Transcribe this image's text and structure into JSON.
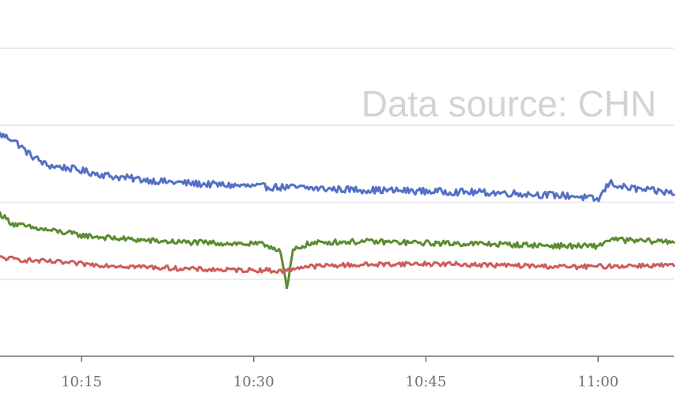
{
  "watermark": "Data source: CHN",
  "chart_data": {
    "type": "line",
    "x_tick_labels": [
      "10:15",
      "10:30",
      "10:45",
      "11:00"
    ],
    "x_tick_minutes": [
      15,
      30,
      45,
      60
    ],
    "x_range_minutes": [
      7.9,
      66.6
    ],
    "y_range": [
      0,
      4
    ],
    "y_gridlines": [
      1,
      2,
      3,
      4
    ],
    "grid": true,
    "legend": "none",
    "series": [
      {
        "color": "#5470c6",
        "x": [
          7.9,
          9,
          10.5,
          12,
          14,
          16,
          18,
          20,
          22,
          25,
          28,
          31,
          34,
          37,
          40,
          43,
          46,
          49,
          52,
          55,
          58,
          60,
          61,
          62,
          64,
          66.6
        ],
        "values": [
          2.88,
          2.82,
          2.62,
          2.48,
          2.44,
          2.38,
          2.33,
          2.3,
          2.27,
          2.24,
          2.22,
          2.2,
          2.19,
          2.17,
          2.16,
          2.15,
          2.14,
          2.13,
          2.12,
          2.1,
          2.08,
          2.03,
          2.26,
          2.2,
          2.16,
          2.12
        ]
      },
      {
        "color": "#5b8c2f",
        "x": [
          7.9,
          9,
          11,
          13,
          15,
          18,
          21,
          24,
          27,
          29,
          31,
          32.3,
          32.9,
          33.4,
          34.5,
          36,
          40,
          45,
          50,
          55,
          58,
          60,
          61,
          63,
          66.6
        ],
        "values": [
          1.85,
          1.72,
          1.66,
          1.62,
          1.57,
          1.53,
          1.5,
          1.48,
          1.47,
          1.46,
          1.45,
          1.38,
          0.86,
          1.37,
          1.45,
          1.48,
          1.49,
          1.47,
          1.46,
          1.44,
          1.43,
          1.43,
          1.52,
          1.5,
          1.49
        ]
      },
      {
        "color": "#cd5c5c",
        "x": [
          7.9,
          10,
          13,
          16,
          19,
          22,
          25,
          28,
          31,
          32.5,
          34,
          37,
          40,
          43,
          46,
          49,
          52,
          55,
          58,
          61,
          64,
          66.6
        ],
        "values": [
          1.28,
          1.25,
          1.22,
          1.19,
          1.17,
          1.15,
          1.13,
          1.12,
          1.12,
          1.1,
          1.16,
          1.18,
          1.19,
          1.2,
          1.2,
          1.19,
          1.18,
          1.17,
          1.16,
          1.17,
          1.18,
          1.18
        ]
      }
    ]
  }
}
